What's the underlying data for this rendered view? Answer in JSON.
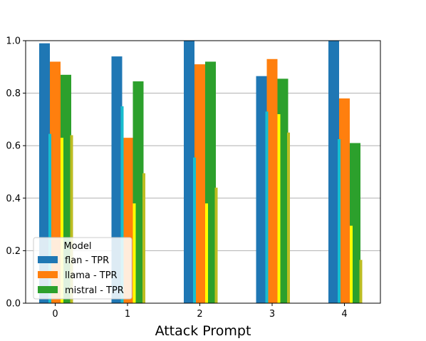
{
  "chart_data": {
    "type": "bar",
    "xlabel": "Attack Prompt",
    "ylabel": "",
    "title": "",
    "categories": [
      "0",
      "1",
      "2",
      "3",
      "4"
    ],
    "ylim": [
      0,
      1.0
    ],
    "yticks": [
      "0.0",
      "0.2",
      "0.4",
      "0.6",
      "0.8",
      "1.0"
    ],
    "grid": "horizontal",
    "legend": {
      "title": "Model",
      "placement": "lower-left",
      "entries": [
        "flan - TPR",
        "llama - TPR",
        "mistral - TPR"
      ]
    },
    "series": [
      {
        "name": "flan - TPR",
        "color": "#1f77b4",
        "values": [
          0.99,
          0.94,
          1.0,
          0.865,
          1.0
        ]
      },
      {
        "name": "llama - TPR",
        "color": "#ff7f0e",
        "values": [
          0.92,
          0.63,
          0.91,
          0.93,
          0.78
        ]
      },
      {
        "name": "mistral - TPR",
        "color": "#2ca02c",
        "values": [
          0.87,
          0.845,
          0.92,
          0.855,
          0.61
        ]
      }
    ],
    "overlay_series": [
      {
        "color": "#17becf",
        "values": [
          0.645,
          0.75,
          0.555,
          0.73,
          0.625
        ]
      },
      {
        "color": "#ffff00",
        "values": [
          0.63,
          0.38,
          0.38,
          0.72,
          0.295
        ]
      },
      {
        "color": "#bcbd22",
        "values": [
          0.64,
          0.495,
          0.44,
          0.65,
          0.165
        ]
      }
    ]
  }
}
